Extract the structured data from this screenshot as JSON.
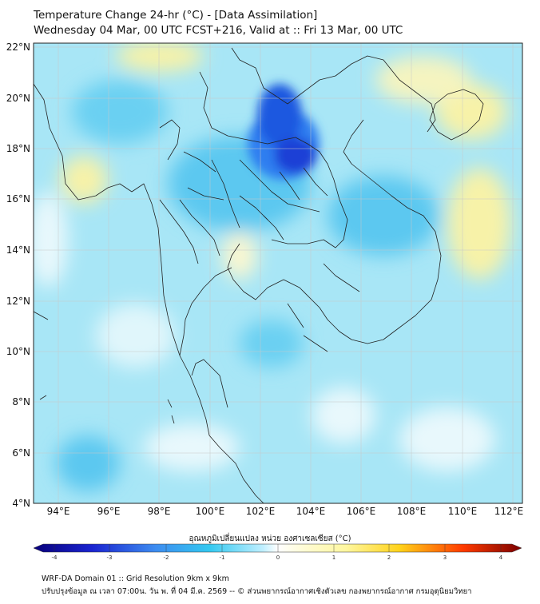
{
  "title_line1": "Temperature Change 24-hr (°C) - [Data Assimilation]",
  "title_line2": "Wednesday 04 Mar, 00 UTC FCST+216, Valid at :: Fri 13 Mar, 00 UTC",
  "lat_labels": [
    "22°N",
    "20°N",
    "18°N",
    "16°N",
    "14°N",
    "12°N",
    "10°N",
    "8°N",
    "6°N",
    "4°N"
  ],
  "lon_labels": [
    "94°E",
    "96°E",
    "98°E",
    "100°E",
    "102°E",
    "104°E",
    "106°E",
    "108°E",
    "110°E",
    "112°E"
  ],
  "colorbar": {
    "label": "อุณหภูมิเปลี่ยนแปลง หน่วย องศาเซลเซียส (°C)",
    "ticks": [
      "-4",
      "-3",
      "-2",
      "-1",
      "0",
      "1",
      "2",
      "3",
      "4"
    ],
    "min": -4,
    "max": 4,
    "colors_negative": [
      "#08007a",
      "#1a24d0",
      "#3d8cf0",
      "#33c8f0",
      "#bfefff"
    ],
    "colors_positive": [
      "#ffffff",
      "#fff7a0",
      "#ffd21a",
      "#ff3a00",
      "#7a0000"
    ]
  },
  "footer_line1": "WRF-DA Domain 01 :: Grid Resolution 9km x 9km",
  "footer_line2": "ปรับปรุงข้อมูล ณ เวลา 07:00น. วัน พ. ที่ 04 มี.ค. 2569 -- © ส่วนพยากรณ์อากาศเชิงตัวเลข กองพยากรณ์อากาศ กรมอุตุนิยมวิทยา"
}
